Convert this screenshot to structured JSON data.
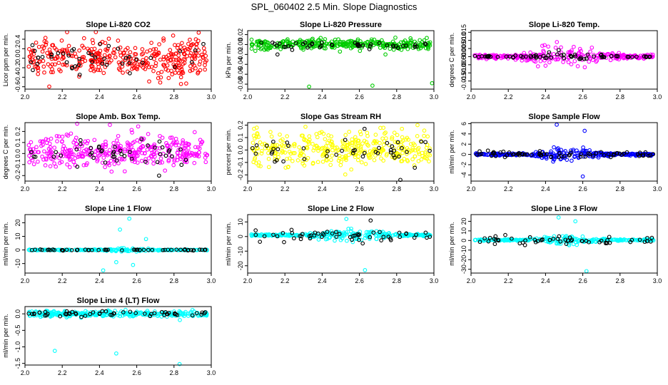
{
  "figure_title": "SPL_060402  2.5 Min. Slope Diagnostics",
  "colors": {
    "red": "#ff0000",
    "green": "#00cc00",
    "magenta": "#ff00ff",
    "yellow": "#ffff00",
    "blue": "#0000ff",
    "cyan": "#00ffff",
    "black": "#000000"
  },
  "chart_data": [
    {
      "type": "scatter",
      "title": "Slope Li-820 CO2",
      "ylabel": "Licor ppm per min.",
      "xlim": [
        2.0,
        3.0
      ],
      "xticks": [
        2.0,
        2.2,
        2.4,
        2.6,
        2.8,
        3.0
      ],
      "xtick_labels": [
        "2.0",
        "2.2",
        "2.4",
        "2.6",
        "2.8",
        "3.0"
      ],
      "ylim": [
        -0.65,
        0.58
      ],
      "yticks": [
        -0.6,
        -0.4,
        -0.2,
        0.0,
        0.2,
        0.4
      ],
      "ytick_labels": [
        "-0.6",
        "-0.4",
        "-0.2",
        "0.0",
        "0.2",
        "0.4"
      ],
      "series": [
        {
          "name": "all",
          "color": "red",
          "n": 360,
          "center": 0.0,
          "spread": 0.21,
          "min": -0.62,
          "max": 0.55,
          "outliers": []
        },
        {
          "name": "subset",
          "color": "black",
          "n": 45,
          "center": 0.0,
          "spread": 0.16,
          "min": -0.35,
          "max": 0.3,
          "outliers": []
        }
      ]
    },
    {
      "type": "scatter",
      "title": "Slope Li-820 Pressure",
      "ylabel": "kPa per min.",
      "xlim": [
        2.0,
        3.0
      ],
      "xticks": [
        2.0,
        2.2,
        2.4,
        2.6,
        2.8,
        3.0
      ],
      "xtick_labels": [
        "2.0",
        "2.2",
        "2.4",
        "2.6",
        "2.8",
        "3.0"
      ],
      "ylim": [
        -0.09,
        0.028
      ],
      "yticks": [
        -0.08,
        -0.06,
        -0.04,
        -0.02,
        0.0,
        0.02
      ],
      "ytick_labels": [
        "-0.08",
        "-0.06",
        "-0.04",
        "-0.02",
        "0.00",
        "0.02"
      ],
      "series": [
        {
          "name": "all",
          "color": "green",
          "n": 320,
          "center": 0.0,
          "spread": 0.005,
          "min": -0.025,
          "max": 0.022,
          "outliers": [
            [
              2.33,
              -0.085
            ],
            [
              2.67,
              -0.083
            ],
            [
              2.99,
              -0.078
            ],
            [
              2.74,
              -0.02
            ]
          ]
        },
        {
          "name": "subset",
          "color": "black",
          "n": 45,
          "center": -0.001,
          "spread": 0.004,
          "min": -0.02,
          "max": 0.012,
          "outliers": [
            [
              2.16,
              -0.02
            ]
          ]
        }
      ]
    },
    {
      "type": "scatter",
      "title": "Slope Li-820 Temp.",
      "ylabel": "degrees C per min.",
      "xlim": [
        2.0,
        3.0
      ],
      "xticks": [
        2.0,
        2.2,
        2.4,
        2.6,
        2.8,
        3.0
      ],
      "xtick_labels": [
        "2.0",
        "2.2",
        "2.4",
        "2.6",
        "2.8",
        "3.0"
      ],
      "ylim": [
        -0.02,
        0.016
      ],
      "yticks": [
        -0.015,
        -0.01,
        -0.005,
        0.0,
        0.005,
        0.01,
        0.015
      ],
      "ytick_labels": [
        "-0.015",
        "-0.010",
        "-0.005",
        "0.000",
        "0.005",
        "0.010",
        "0.015"
      ],
      "series": [
        {
          "name": "all",
          "color": "magenta",
          "n": 280,
          "center": 0.0,
          "spread": 0.0045,
          "min": -0.018,
          "max": 0.013,
          "spread_ramp": [
            2.25,
            2.45,
            2.8
          ],
          "outliers": []
        },
        {
          "name": "subset",
          "color": "black",
          "n": 70,
          "center": 0.0,
          "spread": 0.0018,
          "min": -0.008,
          "max": 0.006,
          "spread_ramp": [
            2.3,
            2.45,
            2.75
          ],
          "outliers": []
        }
      ]
    },
    {
      "type": "scatter",
      "title": "Slope Amb. Box Temp.",
      "ylabel": "degrees C per min.",
      "xlim": [
        2.0,
        3.0
      ],
      "xticks": [
        2.0,
        2.2,
        2.4,
        2.6,
        2.8,
        3.0
      ],
      "xtick_labels": [
        "2.0",
        "2.2",
        "2.4",
        "2.6",
        "2.8",
        "3.0"
      ],
      "ylim": [
        -0.25,
        0.28
      ],
      "yticks": [
        -0.2,
        -0.1,
        0.0,
        0.1,
        0.2
      ],
      "ytick_labels": [
        "-0.2",
        "-0.1",
        "0.0",
        "0.1",
        "0.2"
      ],
      "series": [
        {
          "name": "all",
          "color": "magenta",
          "n": 360,
          "center": 0.02,
          "spread": 0.07,
          "min": -0.22,
          "max": 0.26,
          "outliers": [
            [
              2.28,
              0.27
            ]
          ]
        },
        {
          "name": "subset",
          "color": "black",
          "n": 45,
          "center": 0.0,
          "spread": 0.06,
          "min": -0.2,
          "max": 0.18,
          "outliers": [
            [
              2.72,
              -0.2
            ]
          ]
        }
      ]
    },
    {
      "type": "scatter",
      "title": "Slope Gas Stream RH",
      "ylabel": "percent per min.",
      "xlim": [
        2.0,
        3.0
      ],
      "xticks": [
        2.0,
        2.2,
        2.4,
        2.6,
        2.8,
        3.0
      ],
      "xtick_labels": [
        "2.0",
        "2.2",
        "2.4",
        "2.6",
        "2.8",
        "3.0"
      ],
      "ylim": [
        -0.25,
        0.22
      ],
      "yticks": [
        -0.2,
        -0.1,
        0.0,
        0.1,
        0.2
      ],
      "ytick_labels": [
        "-0.2",
        "-0.1",
        "0.0",
        "0.1",
        "0.2"
      ],
      "series": [
        {
          "name": "all",
          "color": "yellow",
          "n": 360,
          "center": 0.0,
          "spread": 0.07,
          "min": -0.22,
          "max": 0.2,
          "outliers": []
        },
        {
          "name": "subset",
          "color": "black",
          "n": 45,
          "center": 0.0,
          "spread": 0.07,
          "min": -0.24,
          "max": 0.17,
          "outliers": [
            [
              2.82,
              -0.24
            ]
          ]
        }
      ]
    },
    {
      "type": "scatter",
      "title": "Slope Sample Flow",
      "ylabel": "ml/min per min.",
      "xlim": [
        2.0,
        3.0
      ],
      "xticks": [
        2.0,
        2.2,
        2.4,
        2.6,
        2.8,
        3.0
      ],
      "xtick_labels": [
        "2.0",
        "2.2",
        "2.4",
        "2.6",
        "2.8",
        "3.0"
      ],
      "ylim": [
        -5.2,
        6.2
      ],
      "yticks": [
        -4,
        -2,
        0,
        2,
        4,
        6
      ],
      "ytick_labels": [
        "-4",
        "-2",
        "0",
        "2",
        "4",
        "6"
      ],
      "series": [
        {
          "name": "all",
          "color": "blue",
          "n": 320,
          "center": 0.0,
          "spread": 0.7,
          "min": -4.6,
          "max": 5.6,
          "spread_ramp": [
            2.3,
            2.5,
            2.75
          ],
          "outliers": [
            [
              2.46,
              5.8
            ],
            [
              2.61,
              4.6
            ],
            [
              2.6,
              -4.3
            ]
          ]
        },
        {
          "name": "subset",
          "color": "black",
          "n": 70,
          "center": 0.0,
          "spread": 0.3,
          "min": -1.8,
          "max": 1.8,
          "outliers": []
        }
      ]
    },
    {
      "type": "scatter",
      "title": "Slope Line 1 Flow",
      "ylabel": "ml/min per min.",
      "xlim": [
        2.0,
        3.0
      ],
      "xticks": [
        2.0,
        2.2,
        2.4,
        2.6,
        2.8,
        3.0
      ],
      "xtick_labels": [
        "2.0",
        "2.2",
        "2.4",
        "2.6",
        "2.8",
        "3.0"
      ],
      "ylim": [
        -17,
        26
      ],
      "yticks": [
        -10,
        0,
        10,
        20
      ],
      "ytick_labels": [
        "-10",
        "0",
        "10",
        "20"
      ],
      "series": [
        {
          "name": "all",
          "color": "cyan",
          "n": 240,
          "center": 0.0,
          "spread": 0.8,
          "min": -15,
          "max": 24,
          "spread_ramp": [
            2.35,
            2.55,
            2.75
          ],
          "outliers": [
            [
              2.56,
              23
            ],
            [
              2.51,
              15
            ],
            [
              2.65,
              8
            ],
            [
              2.42,
              -15
            ],
            [
              2.49,
              -9
            ],
            [
              2.58,
              -11
            ]
          ]
        },
        {
          "name": "subset",
          "color": "black",
          "n": 55,
          "center": 0.0,
          "spread": 0.2,
          "min": -1.5,
          "max": 1.5,
          "outliers": []
        }
      ]
    },
    {
      "type": "scatter",
      "title": "Slope Line 2 Flow",
      "ylabel": "ml/min per min.",
      "xlim": [
        2.0,
        3.0
      ],
      "xticks": [
        2.0,
        2.2,
        2.4,
        2.6,
        2.8,
        3.0
      ],
      "xtick_labels": [
        "2.0",
        "2.2",
        "2.4",
        "2.6",
        "2.8",
        "3.0"
      ],
      "ylim": [
        -25,
        15
      ],
      "yticks": [
        -20,
        -10,
        0,
        10
      ],
      "ytick_labels": [
        "-20",
        "-10",
        "0",
        "10"
      ],
      "series": [
        {
          "name": "all",
          "color": "cyan",
          "n": 280,
          "center": 1.0,
          "spread": 2.2,
          "min": -23,
          "max": 13,
          "spread_ramp": [
            2.3,
            2.55,
            2.85
          ],
          "outliers": [
            [
              2.63,
              -23
            ],
            [
              2.53,
              12
            ]
          ]
        },
        {
          "name": "subset",
          "color": "black",
          "n": 55,
          "center": 0.5,
          "spread": 2.0,
          "min": -9,
          "max": 12,
          "outliers": [
            [
              2.66,
              11
            ]
          ]
        }
      ]
    },
    {
      "type": "scatter",
      "title": "Slope Line 3 Flow",
      "ylabel": "ml/min per min.",
      "xlim": [
        2.0,
        3.0
      ],
      "xticks": [
        2.0,
        2.2,
        2.4,
        2.6,
        2.8,
        3.0
      ],
      "xtick_labels": [
        "2.0",
        "2.2",
        "2.4",
        "2.6",
        "2.8",
        "3.0"
      ],
      "ylim": [
        -34,
        27
      ],
      "yticks": [
        -30,
        -20,
        -10,
        0,
        10,
        20
      ],
      "ytick_labels": [
        "-30",
        "-20",
        "-10",
        "0",
        "10",
        "20"
      ],
      "series": [
        {
          "name": "all",
          "color": "cyan",
          "n": 270,
          "center": 0.5,
          "spread": 2.5,
          "min": -32,
          "max": 25,
          "spread_ramp": [
            2.3,
            2.5,
            2.75
          ],
          "outliers": [
            [
              2.62,
              -32
            ],
            [
              2.47,
              24
            ],
            [
              2.56,
              20
            ]
          ]
        },
        {
          "name": "subset",
          "color": "black",
          "n": 55,
          "center": 0.0,
          "spread": 2.2,
          "min": -12,
          "max": 10,
          "outliers": []
        }
      ]
    },
    {
      "type": "scatter",
      "title": "Slope Line 4 (LT) Flow",
      "ylabel": "ml/min per min.",
      "xlim": [
        2.0,
        3.0
      ],
      "xticks": [
        2.0,
        2.2,
        2.4,
        2.6,
        2.8,
        3.0
      ],
      "xtick_labels": [
        "2.0",
        "2.2",
        "2.4",
        "2.6",
        "2.8",
        "3.0"
      ],
      "ylim": [
        -1.55,
        0.22
      ],
      "yticks": [
        -1.5,
        -1.0,
        -0.5,
        0.0
      ],
      "ytick_labels": [
        "-1.5",
        "-1.0",
        "-0.5",
        "0.0"
      ],
      "series": [
        {
          "name": "all",
          "color": "cyan",
          "n": 300,
          "center": 0.0,
          "spread": 0.04,
          "min": -0.3,
          "max": 0.15,
          "outliers": [
            [
              2.16,
              -1.12
            ],
            [
              2.49,
              -1.2
            ],
            [
              2.83,
              -1.52
            ],
            [
              2.54,
              0.12
            ]
          ]
        },
        {
          "name": "subset",
          "color": "black",
          "n": 55,
          "center": 0.0,
          "spread": 0.04,
          "min": -0.12,
          "max": 0.12,
          "outliers": []
        }
      ]
    }
  ]
}
